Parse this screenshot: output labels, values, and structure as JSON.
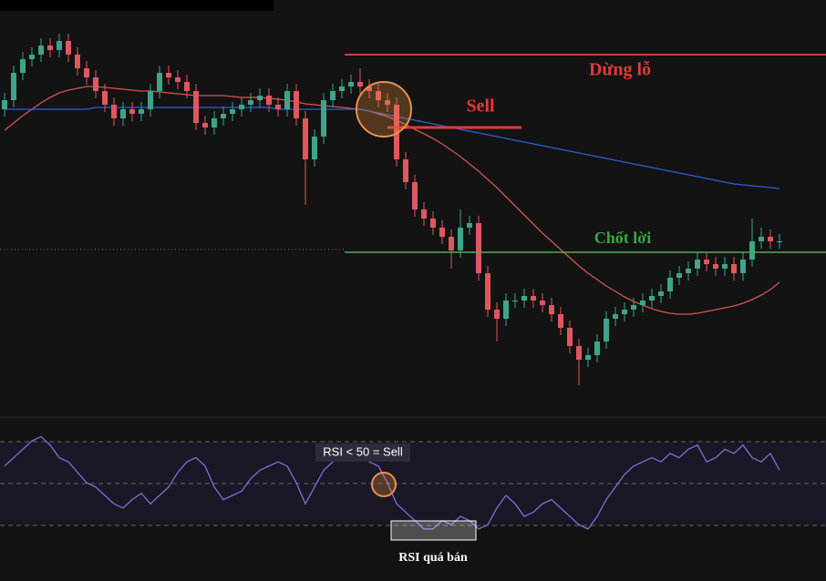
{
  "chart_data": [
    {
      "type": "candlestick",
      "ylim": [
        0,
        420
      ],
      "up_color": "#3fa58a",
      "down_color": "#e0575f",
      "open": [
        320,
        330,
        360,
        375,
        380,
        390,
        385,
        395,
        380,
        365,
        355,
        340,
        325,
        310,
        320,
        315,
        320,
        340,
        360,
        355,
        350,
        340,
        305,
        300,
        310,
        315,
        320,
        325,
        330,
        335,
        325,
        320,
        340,
        310,
        265,
        290,
        330,
        340,
        345,
        350,
        345,
        340,
        330,
        325,
        265,
        240,
        210,
        200,
        190,
        180,
        165,
        190,
        195,
        140,
        100,
        90,
        110,
        110,
        115,
        110,
        105,
        95,
        80,
        60,
        45,
        50,
        65,
        90,
        95,
        100,
        105,
        110,
        115,
        120,
        135,
        140,
        145,
        155,
        150,
        145,
        150,
        140,
        155,
        175,
        180,
        175
      ],
      "high": [
        338,
        368,
        383,
        388,
        398,
        398,
        403,
        403,
        388,
        373,
        363,
        348,
        333,
        328,
        328,
        328,
        348,
        368,
        368,
        363,
        358,
        348,
        313,
        318,
        323,
        328,
        333,
        338,
        343,
        343,
        333,
        348,
        348,
        318,
        298,
        338,
        348,
        353,
        358,
        365,
        353,
        348,
        338,
        333,
        273,
        248,
        218,
        208,
        198,
        188,
        210,
        203,
        203,
        148,
        108,
        118,
        118,
        123,
        123,
        118,
        113,
        103,
        88,
        68,
        58,
        73,
        98,
        103,
        108,
        113,
        118,
        123,
        128,
        143,
        148,
        153,
        163,
        163,
        158,
        158,
        158,
        163,
        200,
        190,
        188,
        183
      ],
      "low": [
        312,
        322,
        352,
        367,
        372,
        377,
        377,
        372,
        357,
        347,
        332,
        317,
        302,
        302,
        307,
        307,
        312,
        332,
        347,
        342,
        332,
        297,
        292,
        292,
        302,
        307,
        312,
        317,
        322,
        317,
        312,
        312,
        302,
        215,
        257,
        282,
        322,
        332,
        337,
        337,
        332,
        322,
        317,
        257,
        232,
        202,
        192,
        182,
        172,
        145,
        157,
        182,
        132,
        92,
        65,
        82,
        102,
        102,
        102,
        97,
        87,
        72,
        52,
        17,
        37,
        42,
        57,
        82,
        87,
        92,
        97,
        102,
        107,
        112,
        127,
        132,
        137,
        142,
        137,
        137,
        132,
        132,
        147,
        167,
        167,
        167
      ],
      "close": [
        330,
        360,
        375,
        380,
        390,
        385,
        395,
        380,
        365,
        355,
        340,
        325,
        310,
        320,
        315,
        320,
        340,
        360,
        355,
        350,
        340,
        305,
        300,
        310,
        315,
        320,
        325,
        330,
        335,
        325,
        320,
        340,
        310,
        265,
        290,
        330,
        340,
        345,
        350,
        345,
        340,
        330,
        325,
        265,
        240,
        210,
        200,
        190,
        180,
        165,
        190,
        195,
        140,
        100,
        90,
        110,
        110,
        115,
        110,
        105,
        95,
        80,
        60,
        45,
        50,
        65,
        90,
        95,
        100,
        105,
        110,
        115,
        120,
        135,
        140,
        145,
        155,
        150,
        145,
        150,
        140,
        155,
        175,
        180,
        175,
        175
      ],
      "series": [
        {
          "color": "#d9534f",
          "values": [
            297,
            305,
            313,
            320,
            327,
            333,
            338,
            341,
            343,
            345,
            345,
            344,
            343,
            342,
            341,
            340,
            340,
            339,
            338,
            337,
            336,
            335,
            335,
            335,
            335,
            334,
            333,
            333,
            333,
            332,
            331,
            330,
            328,
            326,
            325,
            324,
            323,
            322,
            321,
            320,
            318,
            315,
            312,
            308,
            303,
            298,
            293,
            288,
            282,
            275,
            268,
            260,
            252,
            243,
            234,
            224,
            214,
            204,
            194,
            184,
            175,
            166,
            157,
            148,
            140,
            133,
            126,
            120,
            114,
            109,
            105,
            101,
            98,
            96,
            95,
            95,
            96,
            98,
            100,
            102,
            104,
            107,
            111,
            116,
            122,
            130
          ]
        },
        {
          "color": "#2f5fd8",
          "values": [
            320,
            320,
            320,
            320,
            320,
            320,
            320,
            320,
            320,
            320,
            322,
            322,
            322,
            322,
            322,
            322,
            322,
            322,
            322,
            322,
            322,
            322,
            322,
            322,
            322,
            322,
            322,
            322,
            322,
            322,
            320,
            320,
            320,
            320,
            320,
            320,
            320,
            320,
            320,
            320,
            318,
            316,
            314,
            312,
            310,
            308,
            306,
            304,
            302,
            300,
            298,
            296,
            294,
            292,
            290,
            288,
            286,
            284,
            282,
            280,
            278,
            276,
            274,
            272,
            270,
            268,
            266,
            264,
            262,
            260,
            258,
            256,
            254,
            252,
            250,
            248,
            246,
            244,
            242,
            240,
            238,
            237,
            236,
            235,
            234,
            233
          ]
        }
      ],
      "annotations": [
        "Dừng lỗ",
        "Sell",
        "Chốt lời"
      ]
    },
    {
      "type": "line",
      "ylim": [
        21,
        77
      ],
      "series": [
        {
          "color": "#7e6fd6",
          "values": [
            58,
            62,
            66,
            70,
            72,
            68,
            62,
            60,
            55,
            50,
            48,
            44,
            40,
            38,
            42,
            45,
            40,
            44,
            48,
            55,
            60,
            62,
            58,
            48,
            42,
            44,
            46,
            52,
            56,
            58,
            60,
            58,
            50,
            40,
            48,
            56,
            60,
            64,
            66,
            64,
            60,
            58,
            50,
            40,
            36,
            32,
            28,
            28,
            32,
            30,
            34,
            32,
            28,
            30,
            38,
            44,
            40,
            34,
            36,
            40,
            42,
            38,
            34,
            30,
            28,
            34,
            42,
            48,
            54,
            58,
            60,
            62,
            60,
            64,
            62,
            66,
            68,
            60,
            62,
            66,
            64,
            68,
            62,
            60,
            64,
            56
          ]
        }
      ],
      "annotations": [
        "RSI < 50 = Sell",
        "RSI quá bán"
      ]
    }
  ]
}
